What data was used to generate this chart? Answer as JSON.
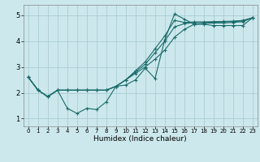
{
  "title": "",
  "xlabel": "Humidex (Indice chaleur)",
  "ylabel": "",
  "bg_color": "#cce8ec",
  "grid_color": "#aacdd4",
  "line_color": "#1a6b6b",
  "xlim": [
    -0.5,
    23.5
  ],
  "ylim": [
    0.7,
    5.4
  ],
  "xticks": [
    0,
    1,
    2,
    3,
    4,
    5,
    6,
    7,
    8,
    9,
    10,
    11,
    12,
    13,
    14,
    15,
    16,
    17,
    18,
    19,
    20,
    21,
    22,
    23
  ],
  "yticks": [
    1,
    2,
    3,
    4,
    5
  ],
  "line1_x": [
    0,
    1,
    2,
    3,
    4,
    5,
    6,
    7,
    8,
    9,
    10,
    11,
    12,
    13,
    14,
    15,
    16,
    17,
    18,
    19,
    20,
    21,
    22,
    23
  ],
  "line1_y": [
    2.6,
    2.1,
    1.85,
    2.1,
    1.4,
    1.2,
    1.4,
    1.35,
    1.65,
    2.25,
    2.3,
    2.5,
    2.95,
    2.55,
    4.05,
    5.05,
    4.85,
    4.65,
    4.65,
    4.6,
    4.6,
    4.6,
    4.6,
    4.9
  ],
  "line2_x": [
    0,
    1,
    2,
    3,
    4,
    5,
    6,
    7,
    8,
    9,
    10,
    11,
    12,
    13,
    14,
    15,
    16,
    17,
    18,
    19,
    20,
    21,
    22,
    23
  ],
  "line2_y": [
    2.6,
    2.1,
    1.85,
    2.1,
    2.1,
    2.1,
    2.1,
    2.1,
    2.1,
    2.25,
    2.5,
    2.75,
    3.0,
    3.3,
    3.65,
    4.15,
    4.45,
    4.65,
    4.68,
    4.7,
    4.7,
    4.72,
    4.75,
    4.9
  ],
  "line3_x": [
    0,
    1,
    2,
    3,
    4,
    5,
    6,
    7,
    8,
    9,
    10,
    11,
    12,
    13,
    14,
    15,
    16,
    17,
    18,
    19,
    20,
    21,
    22,
    23
  ],
  "line3_y": [
    2.6,
    2.1,
    1.85,
    2.1,
    2.1,
    2.1,
    2.1,
    2.1,
    2.1,
    2.25,
    2.5,
    2.8,
    3.1,
    3.55,
    4.0,
    4.55,
    4.67,
    4.72,
    4.72,
    4.73,
    4.74,
    4.75,
    4.78,
    4.9
  ],
  "line4_x": [
    0,
    1,
    2,
    3,
    4,
    5,
    6,
    7,
    8,
    9,
    10,
    11,
    12,
    13,
    14,
    15,
    16,
    17,
    18,
    19,
    20,
    21,
    22,
    23
  ],
  "line4_y": [
    2.6,
    2.1,
    1.85,
    2.1,
    2.1,
    2.1,
    2.1,
    2.1,
    2.1,
    2.25,
    2.5,
    2.85,
    3.2,
    3.7,
    4.2,
    4.8,
    4.72,
    4.74,
    4.74,
    4.75,
    4.76,
    4.77,
    4.8,
    4.9
  ]
}
